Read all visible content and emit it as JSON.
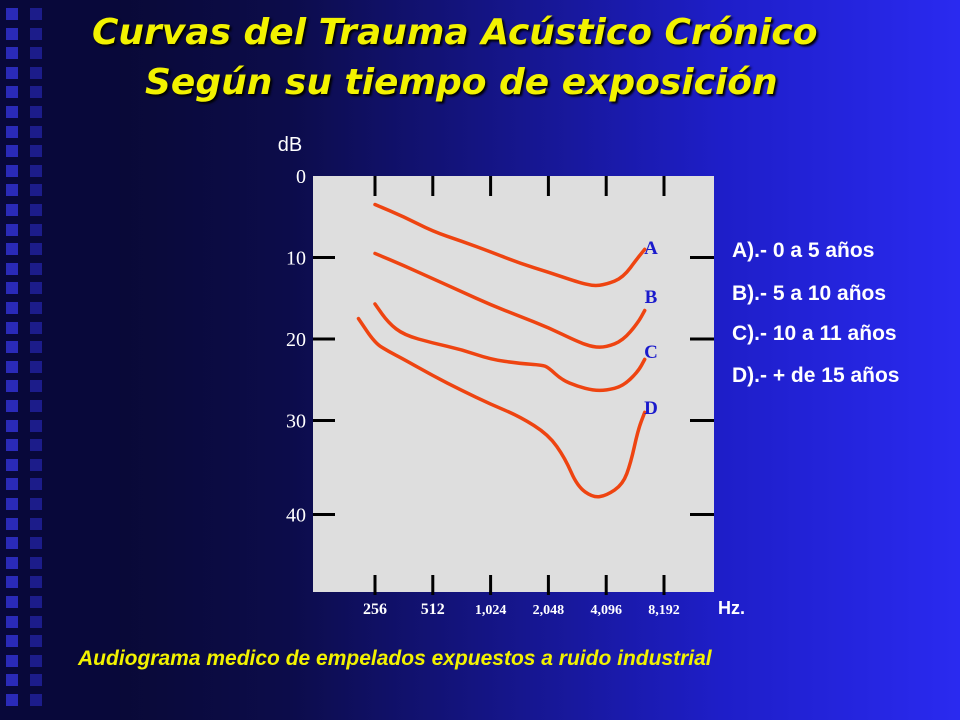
{
  "title_line1": "Curvas del Trauma Acústico Crónico",
  "title_line2": "Según su tiempo de exposición",
  "legend": [
    "A).-  0 a 5 años",
    "B).-  5 a 10 años",
    "C).- 10 a 11 años",
    "D).-  + de 15 años"
  ],
  "caption": "Audiograma medico de empelados expuestos a ruido industrial",
  "colors": {
    "curve": "#ee4411",
    "plot_bg": "#dedede",
    "title": "#f2f200",
    "label_blue": "#1a1acc"
  },
  "chart_data": {
    "type": "line",
    "ylabel": "dB",
    "xlabel": "Hz.",
    "y_ticks": [
      0,
      10,
      20,
      30,
      40
    ],
    "ylim": [
      0,
      50
    ],
    "y_inverted": true,
    "x_ticks": [
      "256",
      "512",
      "1,024",
      "2,048",
      "4,096",
      "8,192"
    ],
    "x_scale": "log2",
    "series": [
      {
        "name": "A",
        "x": [
          256,
          362,
          512,
          724,
          1024,
          1448,
          2048,
          2896,
          3500,
          4096,
          5000,
          6000,
          6500
        ],
        "y": [
          3.5,
          5,
          6.8,
          8,
          9.3,
          10.7,
          11.8,
          13,
          13.5,
          13.3,
          12.5,
          10,
          9
        ]
      },
      {
        "name": "B",
        "x": [
          256,
          362,
          512,
          724,
          1024,
          1448,
          2048,
          2896,
          3500,
          4096,
          5000,
          6000,
          6500
        ],
        "y": [
          9.5,
          11,
          12.6,
          14.2,
          15.8,
          17.2,
          18.6,
          20.3,
          21,
          21,
          20.2,
          18,
          16.5
        ]
      },
      {
        "name": "C",
        "x": [
          256,
          300,
          362,
          512,
          724,
          1024,
          1448,
          1900,
          2048,
          2400,
          2896,
          3500,
          4096,
          5000,
          6000,
          6500
        ],
        "y": [
          15.7,
          18,
          19.5,
          20.5,
          21.3,
          22.5,
          23,
          23.2,
          23.5,
          25,
          25.8,
          26.3,
          26.3,
          25.8,
          24,
          22.5
        ]
      },
      {
        "name": "D",
        "x": [
          210,
          256,
          300,
          362,
          512,
          724,
          1024,
          1448,
          2048,
          2500,
          2896,
          3500,
          4096,
          5000,
          5500,
          6000,
          6500
        ],
        "y": [
          17.5,
          20.5,
          21.5,
          22.5,
          24.5,
          26.3,
          28,
          29.5,
          31.5,
          34,
          37,
          38.2,
          38,
          36.8,
          34.5,
          31,
          29
        ]
      }
    ]
  }
}
